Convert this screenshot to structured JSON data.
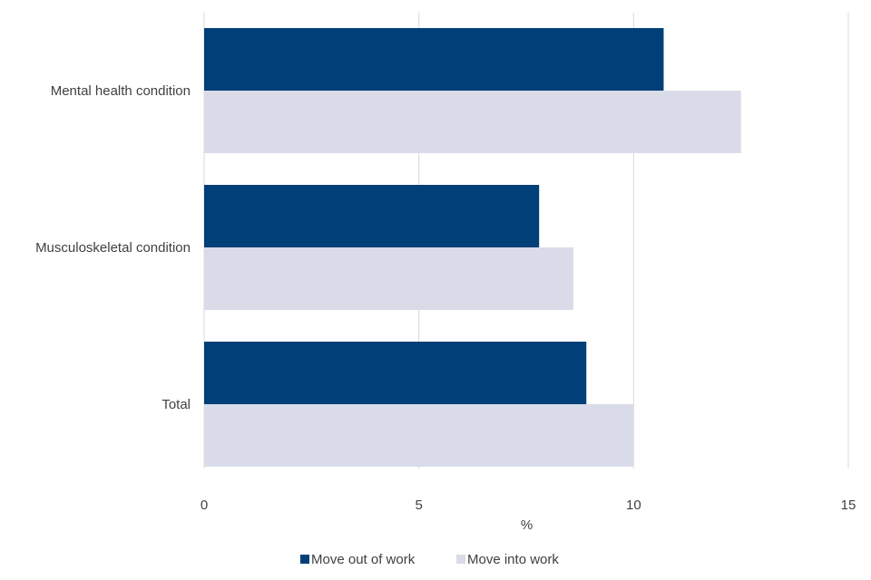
{
  "chart_data": {
    "type": "bar",
    "orientation": "horizontal",
    "categories": [
      "Mental health condition",
      "Musculoskeletal condition",
      "Total"
    ],
    "series": [
      {
        "name": "Move out of work",
        "color": "#003f78",
        "values": [
          10.7,
          7.8,
          8.9
        ]
      },
      {
        "name": "Move into work",
        "color": "#d9dce8",
        "values": [
          12.5,
          8.6,
          10.0
        ]
      }
    ],
    "xlabel": "%",
    "xlim": [
      0,
      15
    ],
    "xticks": [
      "0",
      "5",
      "10",
      "15"
    ],
    "grid": "vertical",
    "legend_position": "bottom"
  }
}
